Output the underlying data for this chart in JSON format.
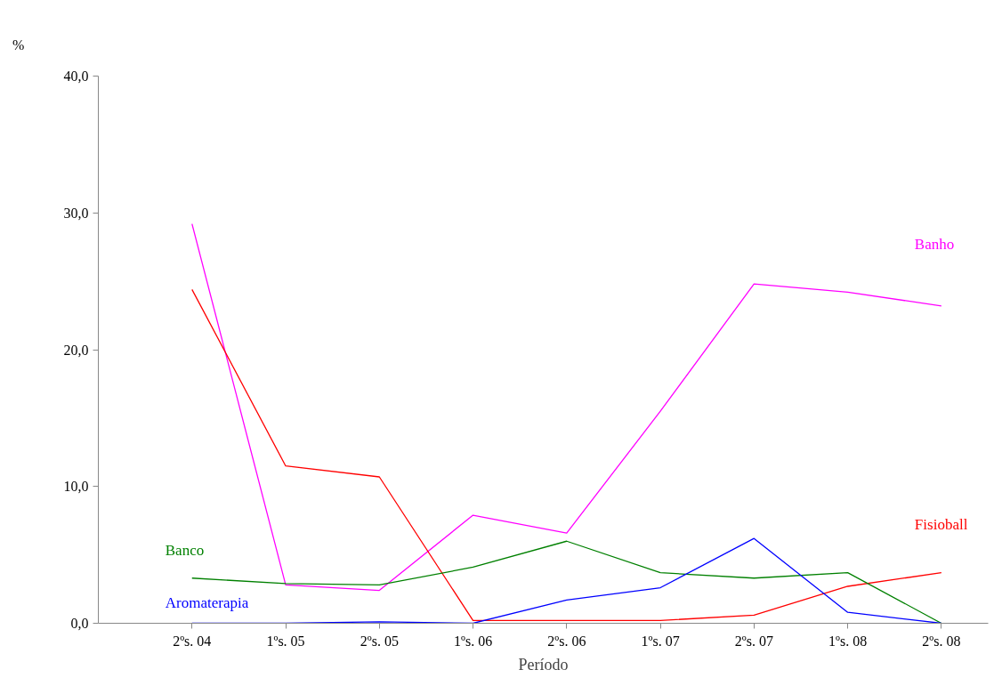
{
  "chart_data": {
    "type": "line",
    "xlabel": "Período",
    "ylabel": "%",
    "categories": [
      "2ºs. 04",
      "1ºs. 05",
      "2ºs. 05",
      "1ºs. 06",
      "2ºs. 06",
      "1ºs. 07",
      "2ºs. 07",
      "1ºs. 08",
      "2ºs. 08"
    ],
    "series": [
      {
        "name": "Banho",
        "color": "#ff00ff",
        "values": [
          29.2,
          2.8,
          2.4,
          7.9,
          6.6,
          15.5,
          24.8,
          24.2,
          23.2
        ]
      },
      {
        "name": "Fisioball",
        "color": "#ff0000",
        "values": [
          24.4,
          11.5,
          10.7,
          0.2,
          0.2,
          0.2,
          0.6,
          2.7,
          3.7
        ]
      },
      {
        "name": "Banco",
        "color": "#008000",
        "values": [
          3.3,
          2.9,
          2.8,
          4.1,
          6.0,
          3.7,
          3.3,
          3.7,
          0.0
        ]
      },
      {
        "name": "Aromaterapia",
        "color": "#0000ff",
        "values": [
          0.0,
          0.0,
          0.1,
          0.0,
          1.7,
          2.6,
          6.2,
          0.8,
          0.0
        ]
      }
    ],
    "ylim": [
      0,
      40
    ],
    "yticks": [
      {
        "value": 0,
        "label": "0,0"
      },
      {
        "value": 10,
        "label": "10,0"
      },
      {
        "value": 20,
        "label": "20,0"
      },
      {
        "value": 30,
        "label": "30,0"
      },
      {
        "value": 40,
        "label": "40,0"
      }
    ],
    "grid": false,
    "line_style": "solid",
    "marker": "none"
  }
}
